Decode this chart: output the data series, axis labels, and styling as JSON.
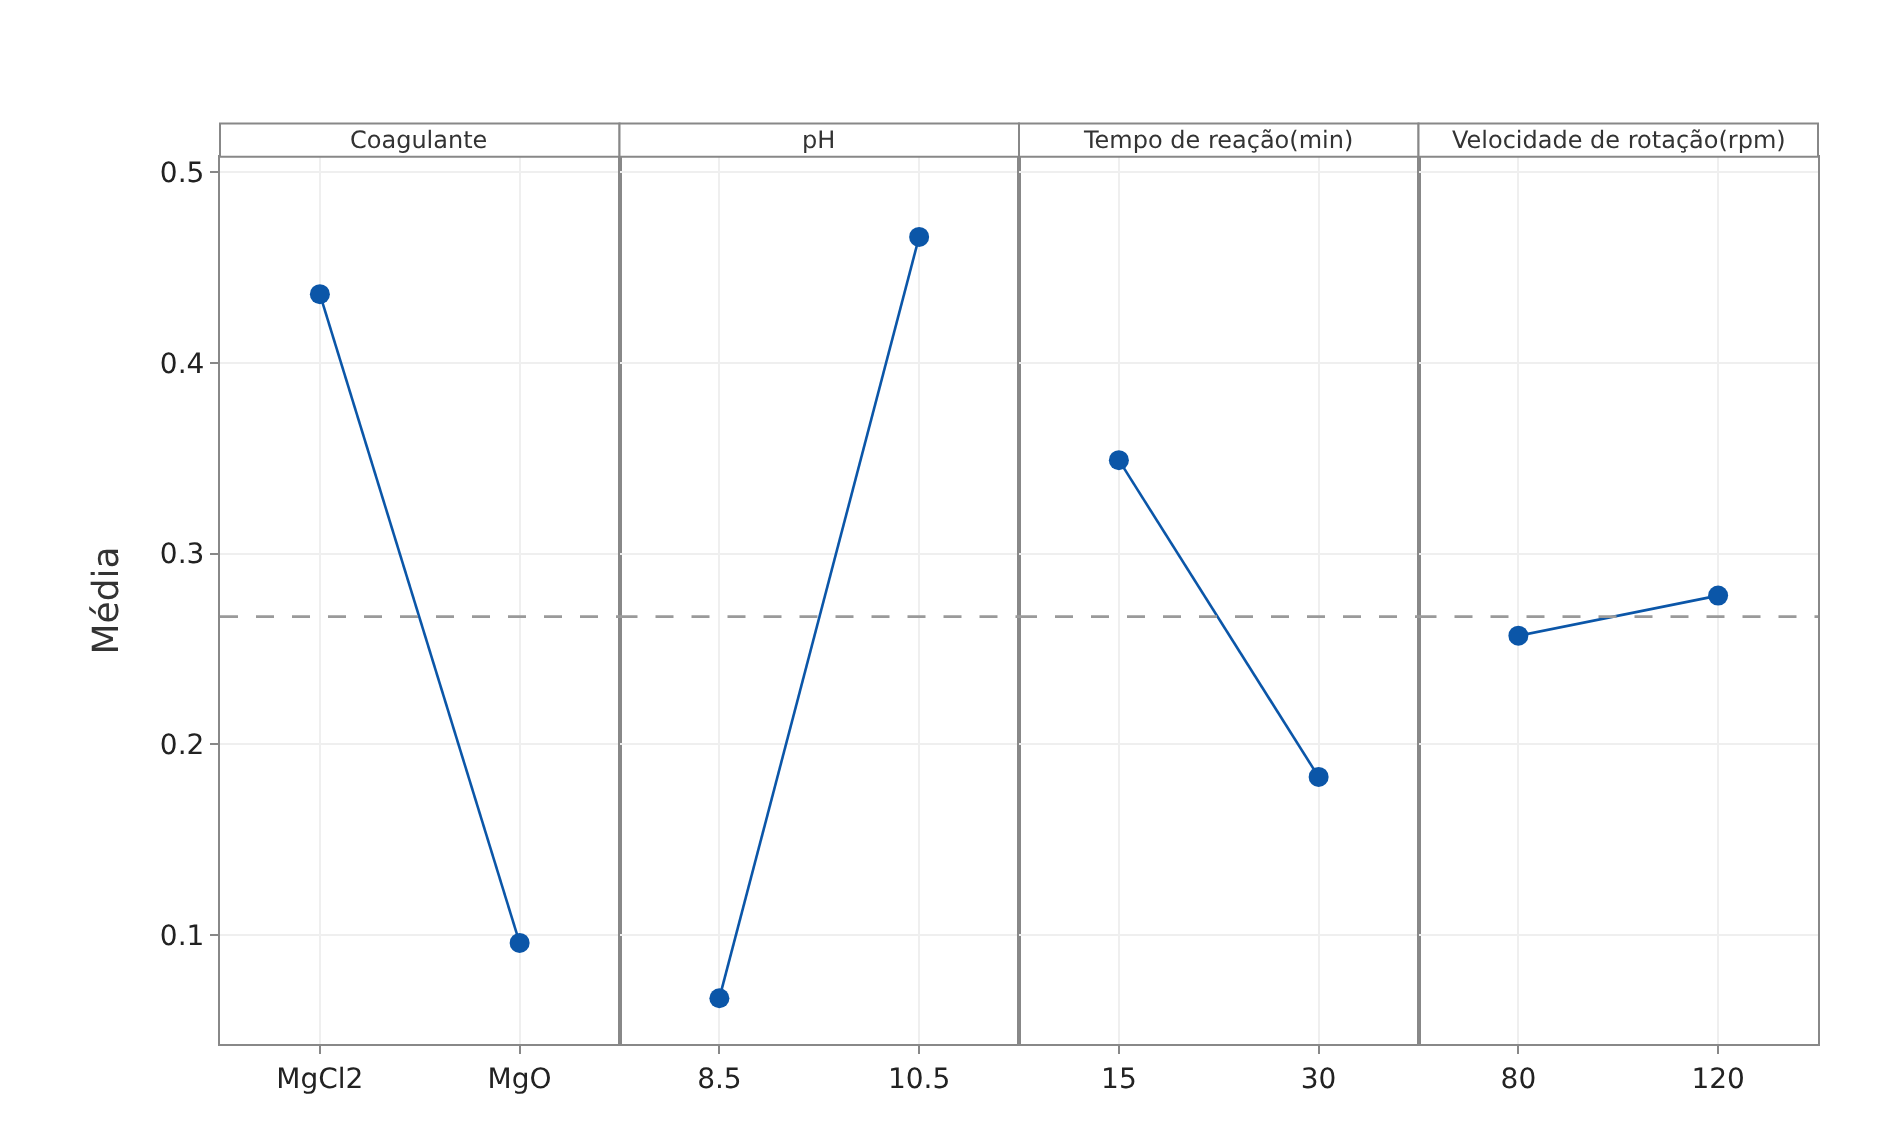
{
  "chart_data": [
    {
      "type": "line",
      "title": "Coagulante",
      "ylabel": "Média",
      "categories": [
        "MgCl2",
        "MgO"
      ],
      "values": [
        0.436,
        0.096
      ],
      "color": "#0b56a8",
      "ylim": [
        0.043,
        0.508
      ],
      "yticks": [
        0.1,
        0.2,
        0.3,
        0.4,
        0.5
      ],
      "grid": true,
      "marker": "circle",
      "ref_lines": [
        {
          "axis": "y",
          "value": 0.267,
          "color": "#9a9a9a",
          "line_style": "dashed"
        }
      ]
    },
    {
      "type": "line",
      "title": "pH",
      "categories": [
        "8.5",
        "10.5"
      ],
      "values": [
        0.067,
        0.466
      ],
      "color": "#0b56a8",
      "ylim": [
        0.043,
        0.508
      ],
      "yticks": [
        0.1,
        0.2,
        0.3,
        0.4,
        0.5
      ],
      "tick_labels": "x",
      "grid": true,
      "marker": "circle",
      "ref_lines": [
        {
          "axis": "y",
          "value": 0.267,
          "color": "#9a9a9a",
          "line_style": "dashed"
        }
      ]
    },
    {
      "type": "line",
      "title": "Tempo de reação(min)",
      "categories": [
        "15",
        "30"
      ],
      "values": [
        0.349,
        0.183
      ],
      "color": "#0b56a8",
      "ylim": [
        0.043,
        0.508
      ],
      "yticks": [
        0.1,
        0.2,
        0.3,
        0.4,
        0.5
      ],
      "tick_labels": "x",
      "grid": true,
      "marker": "circle",
      "ref_lines": [
        {
          "axis": "y",
          "value": 0.267,
          "color": "#9a9a9a",
          "line_style": "dashed"
        }
      ]
    },
    {
      "type": "line",
      "title": "Velocidade de rotação(rpm)",
      "categories": [
        "80",
        "120"
      ],
      "values": [
        0.257,
        0.278
      ],
      "color": "#0b56a8",
      "ylim": [
        0.043,
        0.508
      ],
      "yticks": [
        0.1,
        0.2,
        0.3,
        0.4,
        0.5
      ],
      "tick_labels": "x",
      "grid": true,
      "marker": "circle",
      "ref_lines": [
        {
          "axis": "y",
          "value": 0.267,
          "color": "#9a9a9a",
          "line_style": "dashed"
        }
      ]
    }
  ]
}
